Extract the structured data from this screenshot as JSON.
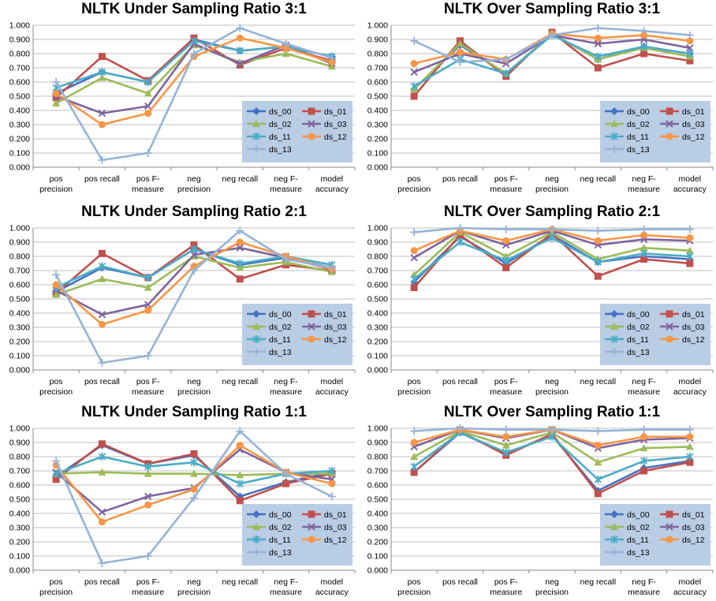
{
  "categories": [
    "pos precision",
    "pos recall",
    "pos F-measure",
    "neg precision",
    "neg recall",
    "neg F-measure",
    "model accuracy"
  ],
  "series_styles": [
    {
      "name": "ds_00",
      "color": "#4472C4",
      "marker": "diamond"
    },
    {
      "name": "ds_01",
      "color": "#C0504D",
      "marker": "square"
    },
    {
      "name": "ds_02",
      "color": "#9BBB59",
      "marker": "triangle"
    },
    {
      "name": "ds_03",
      "color": "#7F63A0",
      "marker": "x"
    },
    {
      "name": "ds_11",
      "color": "#4BACC6",
      "marker": "star"
    },
    {
      "name": "ds_12",
      "color": "#F79646",
      "marker": "circle"
    },
    {
      "name": "ds_13",
      "color": "#95B3D7",
      "marker": "plus"
    }
  ],
  "legend_bg": "#B9CDE5",
  "chart_data": [
    {
      "type": "line",
      "title": "NLTK Under Sampling Ratio 3:1",
      "ylim": [
        0,
        1
      ],
      "ytick_labels": [
        "0.000",
        "0.100",
        "0.200",
        "0.300",
        "0.400",
        "0.500",
        "0.600",
        "0.700",
        "0.800",
        "0.900",
        "1.000"
      ],
      "legend_position": "bottom-right",
      "series": [
        {
          "name": "ds_00",
          "values": [
            0.52,
            0.67,
            0.6,
            0.9,
            0.82,
            0.85,
            0.78
          ]
        },
        {
          "name": "ds_01",
          "values": [
            0.49,
            0.78,
            0.61,
            0.91,
            0.72,
            0.84,
            0.75
          ]
        },
        {
          "name": "ds_02",
          "values": [
            0.45,
            0.63,
            0.52,
            0.86,
            0.74,
            0.8,
            0.71
          ]
        },
        {
          "name": "ds_03",
          "values": [
            0.5,
            0.38,
            0.43,
            0.87,
            0.73,
            0.86,
            0.73
          ]
        },
        {
          "name": "ds_11",
          "values": [
            0.56,
            0.67,
            0.6,
            0.89,
            0.82,
            0.85,
            0.78
          ]
        },
        {
          "name": "ds_12",
          "values": [
            0.52,
            0.3,
            0.38,
            0.78,
            0.91,
            0.84,
            0.74
          ]
        },
        {
          "name": "ds_13",
          "values": [
            0.6,
            0.05,
            0.1,
            0.8,
            0.98,
            0.87,
            0.77
          ]
        }
      ]
    },
    {
      "type": "line",
      "title": "NLTK Over Sampling Ratio 3:1",
      "ylim": [
        0,
        1
      ],
      "ytick_labels": [
        "0.000",
        "0.100",
        "0.200",
        "0.300",
        "0.400",
        "0.500",
        "0.600",
        "0.700",
        "0.800",
        "0.900",
        "1.000"
      ],
      "legend_position": "bottom-right",
      "series": [
        {
          "name": "ds_00",
          "values": [
            0.55,
            0.86,
            0.66,
            0.94,
            0.76,
            0.85,
            0.8
          ]
        },
        {
          "name": "ds_01",
          "values": [
            0.5,
            0.89,
            0.64,
            0.95,
            0.7,
            0.8,
            0.75
          ]
        },
        {
          "name": "ds_02",
          "values": [
            0.55,
            0.87,
            0.66,
            0.94,
            0.76,
            0.84,
            0.78
          ]
        },
        {
          "name": "ds_03",
          "values": [
            0.67,
            0.8,
            0.73,
            0.93,
            0.87,
            0.9,
            0.84
          ]
        },
        {
          "name": "ds_11",
          "values": [
            0.57,
            0.76,
            0.66,
            0.93,
            0.78,
            0.85,
            0.8
          ]
        },
        {
          "name": "ds_12",
          "values": [
            0.73,
            0.81,
            0.76,
            0.94,
            0.91,
            0.93,
            0.89
          ]
        },
        {
          "name": "ds_13",
          "values": [
            0.89,
            0.74,
            0.76,
            0.93,
            0.98,
            0.96,
            0.93
          ]
        }
      ]
    },
    {
      "type": "line",
      "title": "NLTK Under Sampling Ratio 2:1",
      "ylim": [
        0,
        1
      ],
      "ytick_labels": [
        "0.000",
        "0.100",
        "0.200",
        "0.300",
        "0.400",
        "0.500",
        "0.600",
        "0.700",
        "0.800",
        "0.900",
        "1.000"
      ],
      "legend_position": "bottom-right",
      "series": [
        {
          "name": "ds_00",
          "values": [
            0.55,
            0.72,
            0.65,
            0.85,
            0.74,
            0.79,
            0.72
          ]
        },
        {
          "name": "ds_01",
          "values": [
            0.54,
            0.82,
            0.65,
            0.88,
            0.64,
            0.74,
            0.7
          ]
        },
        {
          "name": "ds_02",
          "values": [
            0.53,
            0.64,
            0.58,
            0.8,
            0.72,
            0.76,
            0.69
          ]
        },
        {
          "name": "ds_03",
          "values": [
            0.56,
            0.39,
            0.46,
            0.81,
            0.86,
            0.79,
            0.71
          ]
        },
        {
          "name": "ds_11",
          "values": [
            0.58,
            0.73,
            0.65,
            0.85,
            0.75,
            0.8,
            0.74
          ]
        },
        {
          "name": "ds_12",
          "values": [
            0.6,
            0.32,
            0.42,
            0.73,
            0.9,
            0.8,
            0.71
          ]
        },
        {
          "name": "ds_13",
          "values": [
            0.67,
            0.05,
            0.1,
            0.7,
            0.98,
            0.78,
            0.72
          ]
        }
      ]
    },
    {
      "type": "line",
      "title": "NLTK Over Sampling Ratio 2:1",
      "ylim": [
        0,
        1
      ],
      "ytick_labels": [
        "0.000",
        "0.100",
        "0.200",
        "0.300",
        "0.400",
        "0.500",
        "0.600",
        "0.700",
        "0.800",
        "0.900",
        "1.000"
      ],
      "legend_position": "bottom-right",
      "series": [
        {
          "name": "ds_00",
          "values": [
            0.62,
            0.94,
            0.75,
            0.95,
            0.76,
            0.8,
            0.78
          ]
        },
        {
          "name": "ds_01",
          "values": [
            0.58,
            0.95,
            0.72,
            0.96,
            0.66,
            0.78,
            0.75
          ]
        },
        {
          "name": "ds_02",
          "values": [
            0.67,
            0.97,
            0.8,
            0.97,
            0.78,
            0.86,
            0.84
          ]
        },
        {
          "name": "ds_03",
          "values": [
            0.79,
            0.98,
            0.88,
            0.98,
            0.88,
            0.92,
            0.91
          ]
        },
        {
          "name": "ds_11",
          "values": [
            0.64,
            0.9,
            0.77,
            0.93,
            0.76,
            0.82,
            0.8
          ]
        },
        {
          "name": "ds_12",
          "values": [
            0.84,
            0.98,
            0.91,
            0.99,
            0.91,
            0.95,
            0.93
          ]
        },
        {
          "name": "ds_13",
          "values": [
            0.97,
            1.0,
            0.99,
            0.99,
            0.98,
            0.99,
            0.99
          ]
        }
      ]
    },
    {
      "type": "line",
      "title": "NLTK Under Sampling Ratio 1:1",
      "ylim": [
        0,
        1
      ],
      "ytick_labels": [
        "0.000",
        "0.100",
        "0.200",
        "0.300",
        "0.400",
        "0.500",
        "0.600",
        "0.700",
        "0.800",
        "0.900",
        "1.000"
      ],
      "legend_position": "bottom-right",
      "series": [
        {
          "name": "ds_00",
          "values": [
            0.66,
            0.88,
            0.75,
            0.81,
            0.52,
            0.62,
            0.69
          ]
        },
        {
          "name": "ds_01",
          "values": [
            0.64,
            0.89,
            0.75,
            0.82,
            0.49,
            0.61,
            0.68
          ]
        },
        {
          "name": "ds_02",
          "values": [
            0.68,
            0.69,
            0.68,
            0.68,
            0.67,
            0.68,
            0.68
          ]
        },
        {
          "name": "ds_03",
          "values": [
            0.69,
            0.41,
            0.52,
            0.58,
            0.85,
            0.69,
            0.64
          ]
        },
        {
          "name": "ds_11",
          "values": [
            0.68,
            0.8,
            0.73,
            0.76,
            0.61,
            0.68,
            0.7
          ]
        },
        {
          "name": "ds_12",
          "values": [
            0.74,
            0.34,
            0.46,
            0.57,
            0.88,
            0.69,
            0.61
          ]
        },
        {
          "name": "ds_13",
          "values": [
            0.77,
            0.05,
            0.1,
            0.51,
            0.98,
            0.68,
            0.52
          ]
        }
      ]
    },
    {
      "type": "line",
      "title": "NLTK Over Sampling Ratio 1:1",
      "ylim": [
        0,
        1
      ],
      "ytick_labels": [
        "0.000",
        "0.100",
        "0.200",
        "0.300",
        "0.400",
        "0.500",
        "0.600",
        "0.700",
        "0.800",
        "0.900",
        "1.000"
      ],
      "legend_position": "bottom-right",
      "series": [
        {
          "name": "ds_00",
          "values": [
            0.69,
            0.97,
            0.82,
            0.95,
            0.56,
            0.72,
            0.77
          ]
        },
        {
          "name": "ds_01",
          "values": [
            0.69,
            0.98,
            0.81,
            0.96,
            0.54,
            0.7,
            0.76
          ]
        },
        {
          "name": "ds_02",
          "values": [
            0.8,
            0.98,
            0.88,
            0.97,
            0.76,
            0.86,
            0.87
          ]
        },
        {
          "name": "ds_03",
          "values": [
            0.87,
            0.99,
            0.93,
            0.99,
            0.86,
            0.92,
            0.93
          ]
        },
        {
          "name": "ds_11",
          "values": [
            0.73,
            0.97,
            0.83,
            0.94,
            0.64,
            0.77,
            0.8
          ]
        },
        {
          "name": "ds_12",
          "values": [
            0.9,
            0.99,
            0.94,
            0.99,
            0.88,
            0.94,
            0.94
          ]
        },
        {
          "name": "ds_13",
          "values": [
            0.98,
            1.0,
            0.99,
            0.99,
            0.98,
            0.99,
            0.99
          ]
        }
      ]
    }
  ]
}
